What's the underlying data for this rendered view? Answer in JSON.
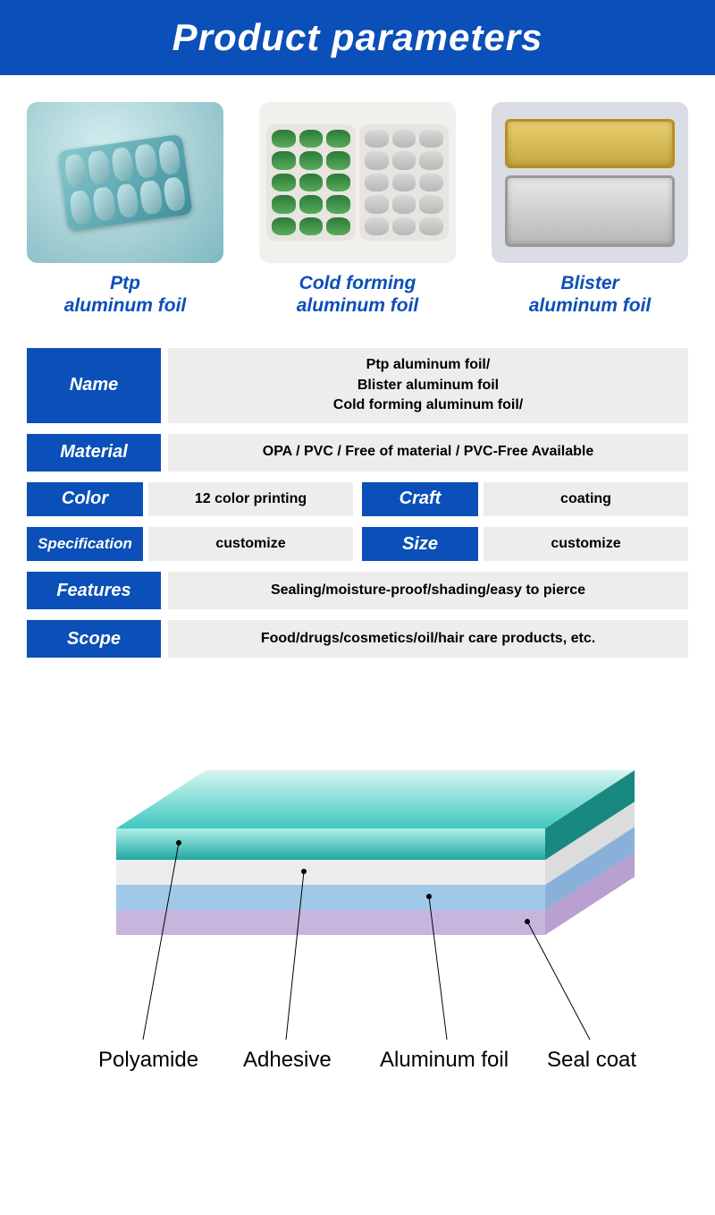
{
  "header": {
    "title": "Product parameters"
  },
  "colors": {
    "primary": "#0b4fb8",
    "gray_bg": "#ededed",
    "teal_top": "#2fb8b0",
    "teal_light": "#9de5df",
    "white_layer": "#f5f5f5",
    "blue_layer": "#b8d8f0",
    "lilac_layer": "#d8c8e8"
  },
  "products": [
    {
      "label": "Ptp\naluminum foil"
    },
    {
      "label": "Cold forming\naluminum foil"
    },
    {
      "label": "Blister\naluminum foil"
    }
  ],
  "params": {
    "name": {
      "label": "Name",
      "value": "Ptp aluminum foil/\nBlister aluminum foil\nCold forming aluminum foil/"
    },
    "material": {
      "label": "Material",
      "value": "OPA / PVC / Free of material / PVC-Free Available"
    },
    "color": {
      "label": "Color",
      "value": "12 color printing"
    },
    "craft": {
      "label": "Craft",
      "value": "coating"
    },
    "specification": {
      "label": "Specification",
      "value": "customize"
    },
    "size": {
      "label": "Size",
      "value": "customize"
    },
    "features": {
      "label": "Features",
      "value": "Sealing/moisture-proof/shading/easy to pierce"
    },
    "scope": {
      "label": "Scope",
      "value": "Food/drugs/cosmetics/oil/hair care products, etc."
    }
  },
  "diagram": {
    "layers": [
      {
        "name": "Polyamide",
        "color": "#2fb8b0",
        "thickness": 35
      },
      {
        "name": "Adhesive",
        "color": "#f5f5f5",
        "thickness": 28
      },
      {
        "name": "Aluminum foil",
        "color": "#b8d8f0",
        "thickness": 28
      },
      {
        "name": "Seal coat",
        "color": "#d8c8e8",
        "thickness": 28
      }
    ]
  }
}
